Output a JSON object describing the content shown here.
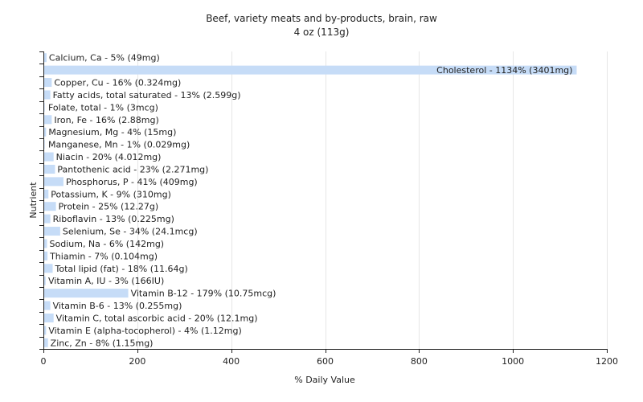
{
  "chart_data": {
    "type": "bar",
    "orientation": "horizontal",
    "title": "Beef, variety meats and by-products, brain, raw",
    "subtitle": "4 oz (113g)",
    "xlabel": "% Daily Value",
    "ylabel": "Nutrient",
    "xlim": [
      0,
      1200
    ],
    "xticks": [
      0,
      200,
      400,
      600,
      800,
      1000,
      1200
    ],
    "grid": true,
    "bar_color": "#c6dcf7",
    "categories": [
      "Calcium, Ca",
      "Cholesterol",
      "Copper, Cu",
      "Fatty acids, total saturated",
      "Folate, total",
      "Iron, Fe",
      "Magnesium, Mg",
      "Manganese, Mn",
      "Niacin",
      "Pantothenic acid",
      "Phosphorus, P",
      "Potassium, K",
      "Protein",
      "Riboflavin",
      "Selenium, Se",
      "Sodium, Na",
      "Thiamin",
      "Total lipid (fat)",
      "Vitamin A, IU",
      "Vitamin B-12",
      "Vitamin B-6",
      "Vitamin C, total ascorbic acid",
      "Vitamin E (alpha-tocopherol)",
      "Zinc, Zn"
    ],
    "values": [
      5,
      1134,
      16,
      13,
      1,
      16,
      4,
      1,
      20,
      23,
      41,
      9,
      25,
      13,
      34,
      6,
      7,
      18,
      3,
      179,
      13,
      20,
      4,
      8
    ],
    "labels": [
      "Calcium, Ca - 5% (49mg)",
      "Cholesterol - 1134% (3401mg)",
      "Copper, Cu - 16% (0.324mg)",
      "Fatty acids, total saturated - 13% (2.599g)",
      "Folate, total - 1% (3mcg)",
      "Iron, Fe - 16% (2.88mg)",
      "Magnesium, Mg - 4% (15mg)",
      "Manganese, Mn - 1% (0.029mg)",
      "Niacin - 20% (4.012mg)",
      "Pantothenic acid - 23% (2.271mg)",
      "Phosphorus, P - 41% (409mg)",
      "Potassium, K - 9% (310mg)",
      "Protein - 25% (12.27g)",
      "Riboflavin - 13% (0.225mg)",
      "Selenium, Se - 34% (24.1mcg)",
      "Sodium, Na - 6% (142mg)",
      "Thiamin - 7% (0.104mg)",
      "Total lipid (fat) - 18% (11.64g)",
      "Vitamin A, IU - 3% (166IU)",
      "Vitamin B-12 - 179% (10.75mcg)",
      "Vitamin B-6 - 13% (0.255mg)",
      "Vitamin C, total ascorbic acid - 20% (12.1mg)",
      "Vitamin E (alpha-tocopherol) - 4% (1.12mg)",
      "Zinc, Zn - 8% (1.15mg)"
    ]
  }
}
